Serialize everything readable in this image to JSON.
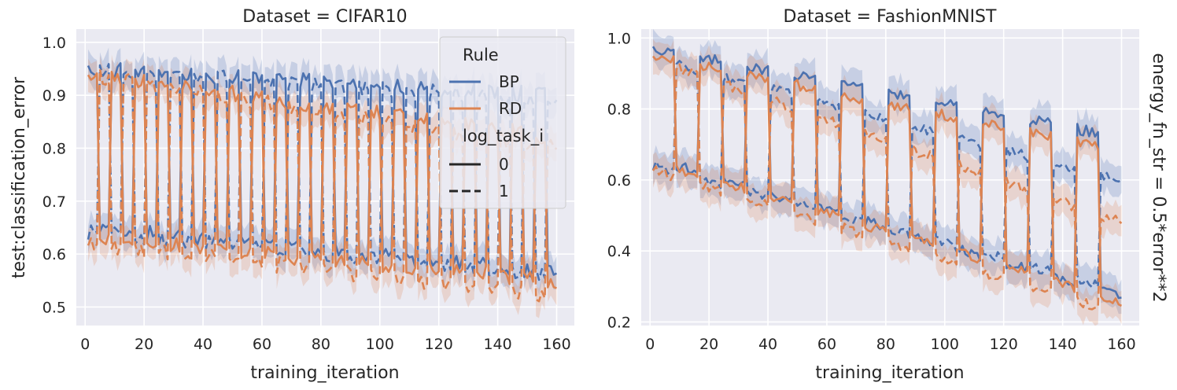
{
  "chart_data": [
    {
      "type": "line",
      "title": "Dataset = CIFAR10",
      "xlabel": "training_iteration",
      "ylabel": "test:classification_error",
      "xlim": [
        -3,
        166
      ],
      "ylim": [
        0.465,
        1.025
      ],
      "xticks": [
        0,
        20,
        40,
        60,
        80,
        100,
        120,
        140,
        160
      ],
      "yticks": [
        0.5,
        0.6,
        0.7,
        0.8,
        0.9,
        1.0
      ],
      "ytick_labels": [
        "0.5",
        "0.6",
        "0.7",
        "0.8",
        "0.9",
        "1.0"
      ],
      "grid": true,
      "legend_position": "top-right",
      "legend": {
        "hue_title": "Rule",
        "hue_entries": [
          "BP",
          "RD"
        ],
        "style_title": "log_task_i",
        "style_entries": [
          "0",
          "1"
        ]
      },
      "period": 4,
      "n_iterations": 160,
      "series": [
        {
          "name": "BP",
          "log_task_i": "0",
          "color": "#4c72b0",
          "high_start": 0.95,
          "high_end": 0.9,
          "low_start": 0.65,
          "low_end": 0.565,
          "initial_phase": "high"
        },
        {
          "name": "BP",
          "log_task_i": "1",
          "color": "#4c72b0",
          "high_start": 0.95,
          "high_end": 0.89,
          "low_start": 0.64,
          "low_end": 0.56,
          "initial_phase": "low"
        },
        {
          "name": "RD",
          "log_task_i": "0",
          "color": "#dd8452",
          "high_start": 0.94,
          "high_end": 0.82,
          "low_start": 0.63,
          "low_end": 0.55,
          "initial_phase": "high"
        },
        {
          "name": "RD",
          "log_task_i": "1",
          "color": "#dd8452",
          "high_start": 0.94,
          "high_end": 0.8,
          "low_start": 0.62,
          "low_end": 0.52,
          "initial_phase": "low"
        }
      ]
    },
    {
      "type": "line",
      "title": "Dataset = FashionMNIST",
      "xlabel": "training_iteration",
      "ylabel": "",
      "right_label": "energy_fn_str = 0.5*error**2",
      "xlim": [
        -3,
        166
      ],
      "ylim": [
        0.19,
        1.025
      ],
      "xticks": [
        0,
        20,
        40,
        60,
        80,
        100,
        120,
        140,
        160
      ],
      "yticks": [
        0.2,
        0.4,
        0.6,
        0.8,
        1.0
      ],
      "ytick_labels": [
        "0.2",
        "0.4",
        "0.6",
        "0.8",
        "1.0"
      ],
      "grid": true,
      "period": 8,
      "n_iterations": 160,
      "series": [
        {
          "name": "BP",
          "log_task_i": "0",
          "color": "#4c72b0",
          "high_start": 0.97,
          "high_end": 0.72,
          "low_start": 0.66,
          "low_end": 0.27,
          "initial_phase": "high"
        },
        {
          "name": "BP",
          "log_task_i": "1",
          "color": "#4c72b0",
          "high_start": 0.94,
          "high_end": 0.6,
          "low_start": 0.64,
          "low_end": 0.29,
          "initial_phase": "low"
        },
        {
          "name": "RD",
          "log_task_i": "0",
          "color": "#dd8452",
          "high_start": 0.95,
          "high_end": 0.68,
          "low_start": 0.65,
          "low_end": 0.26,
          "initial_phase": "high"
        },
        {
          "name": "RD",
          "log_task_i": "1",
          "color": "#dd8452",
          "high_start": 0.94,
          "high_end": 0.48,
          "low_start": 0.63,
          "low_end": 0.22,
          "initial_phase": "low"
        }
      ]
    }
  ]
}
